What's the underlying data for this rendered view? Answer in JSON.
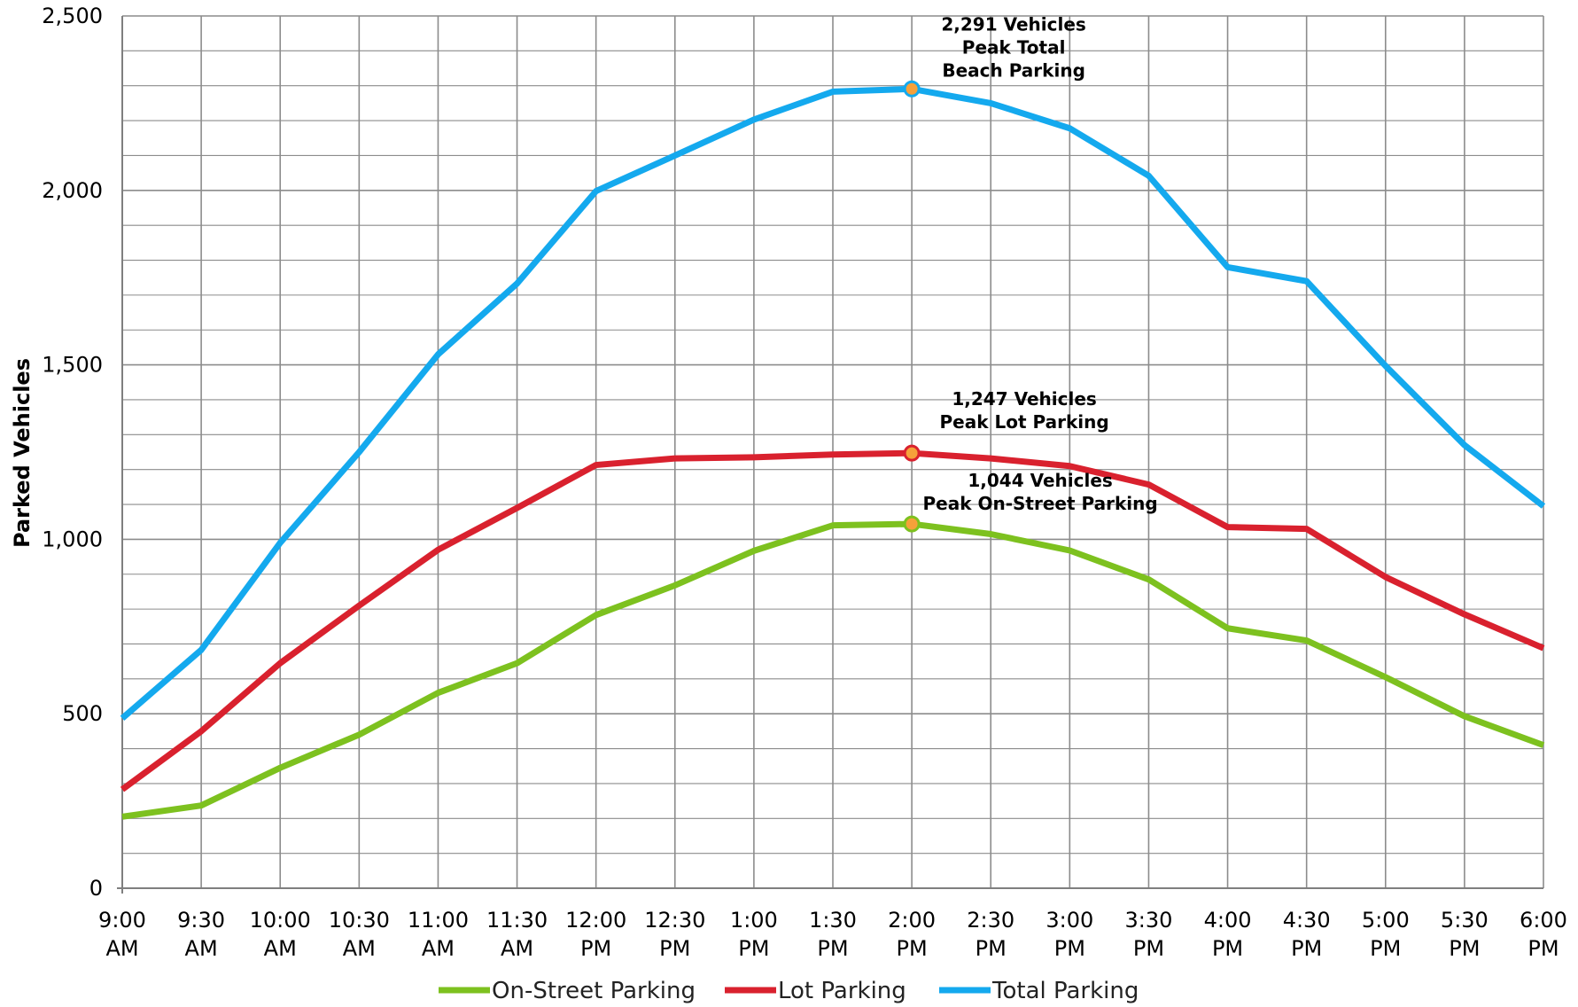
{
  "chart_data": {
    "type": "line",
    "ylabel": "Parked Vehicles",
    "xlabel": "",
    "ylim": [
      0,
      2500
    ],
    "yticks": [
      0,
      500,
      1000,
      1500,
      2000,
      2500
    ],
    "y_tick_labels": [
      "0",
      "500",
      "1,000",
      "1,500",
      "2,000",
      "2,500"
    ],
    "minor_y_step": 100,
    "grid": true,
    "legend_position": "bottom",
    "categories": [
      [
        "9:00",
        "AM"
      ],
      [
        "9:30",
        "AM"
      ],
      [
        "10:00",
        "AM"
      ],
      [
        "10:30",
        "AM"
      ],
      [
        "11:00",
        "AM"
      ],
      [
        "11:30",
        "AM"
      ],
      [
        "12:00",
        "PM"
      ],
      [
        "12:30",
        "PM"
      ],
      [
        "1:00",
        "PM"
      ],
      [
        "1:30",
        "PM"
      ],
      [
        "2:00",
        "PM"
      ],
      [
        "2:30",
        "PM"
      ],
      [
        "3:00",
        "PM"
      ],
      [
        "3:30",
        "PM"
      ],
      [
        "4:00",
        "PM"
      ],
      [
        "4:30",
        "PM"
      ],
      [
        "5:00",
        "PM"
      ],
      [
        "5:30",
        "PM"
      ],
      [
        "6:00",
        "PM"
      ]
    ],
    "series": [
      {
        "name": "On-Street Parking",
        "color": "#7DC11F",
        "values": [
          205,
          237,
          345,
          440,
          560,
          645,
          783,
          868,
          967,
          1040,
          1044,
          1015,
          968,
          885,
          745,
          710,
          605,
          493,
          410
        ]
      },
      {
        "name": "Lot Parking",
        "color": "#D9212E",
        "values": [
          283,
          450,
          645,
          810,
          970,
          1090,
          1213,
          1232,
          1235,
          1243,
          1247,
          1232,
          1210,
          1157,
          1035,
          1030,
          892,
          785,
          688
        ]
      },
      {
        "name": "Total Parking",
        "color": "#14A9EE",
        "values": [
          487,
          683,
          990,
          1250,
          1530,
          1733,
          1998,
          2100,
          2203,
          2283,
          2291,
          2250,
          2178,
          2042,
          1780,
          1740,
          1497,
          1270,
          1095
        ]
      }
    ],
    "annotations": [
      {
        "series": "Total Parking",
        "index": 10,
        "lines": [
          "2,291 Vehicles",
          "Peak Total",
          "Beach Parking"
        ],
        "marker_fill": "#F6A13A",
        "marker_stroke": "#14A9EE"
      },
      {
        "series": "Lot Parking",
        "index": 10,
        "lines": [
          "1,247 Vehicles",
          "Peak Lot Parking"
        ],
        "marker_fill": "#F6A13A",
        "marker_stroke": "#D9212E"
      },
      {
        "series": "On-Street Parking",
        "index": 10,
        "lines": [
          "1,044 Vehicles",
          "Peak On-Street Parking"
        ],
        "marker_fill": "#F6A13A",
        "marker_stroke": "#7DC11F"
      }
    ],
    "grid_color": "#8C8C8C",
    "axis_color": "#7F7F7F"
  }
}
